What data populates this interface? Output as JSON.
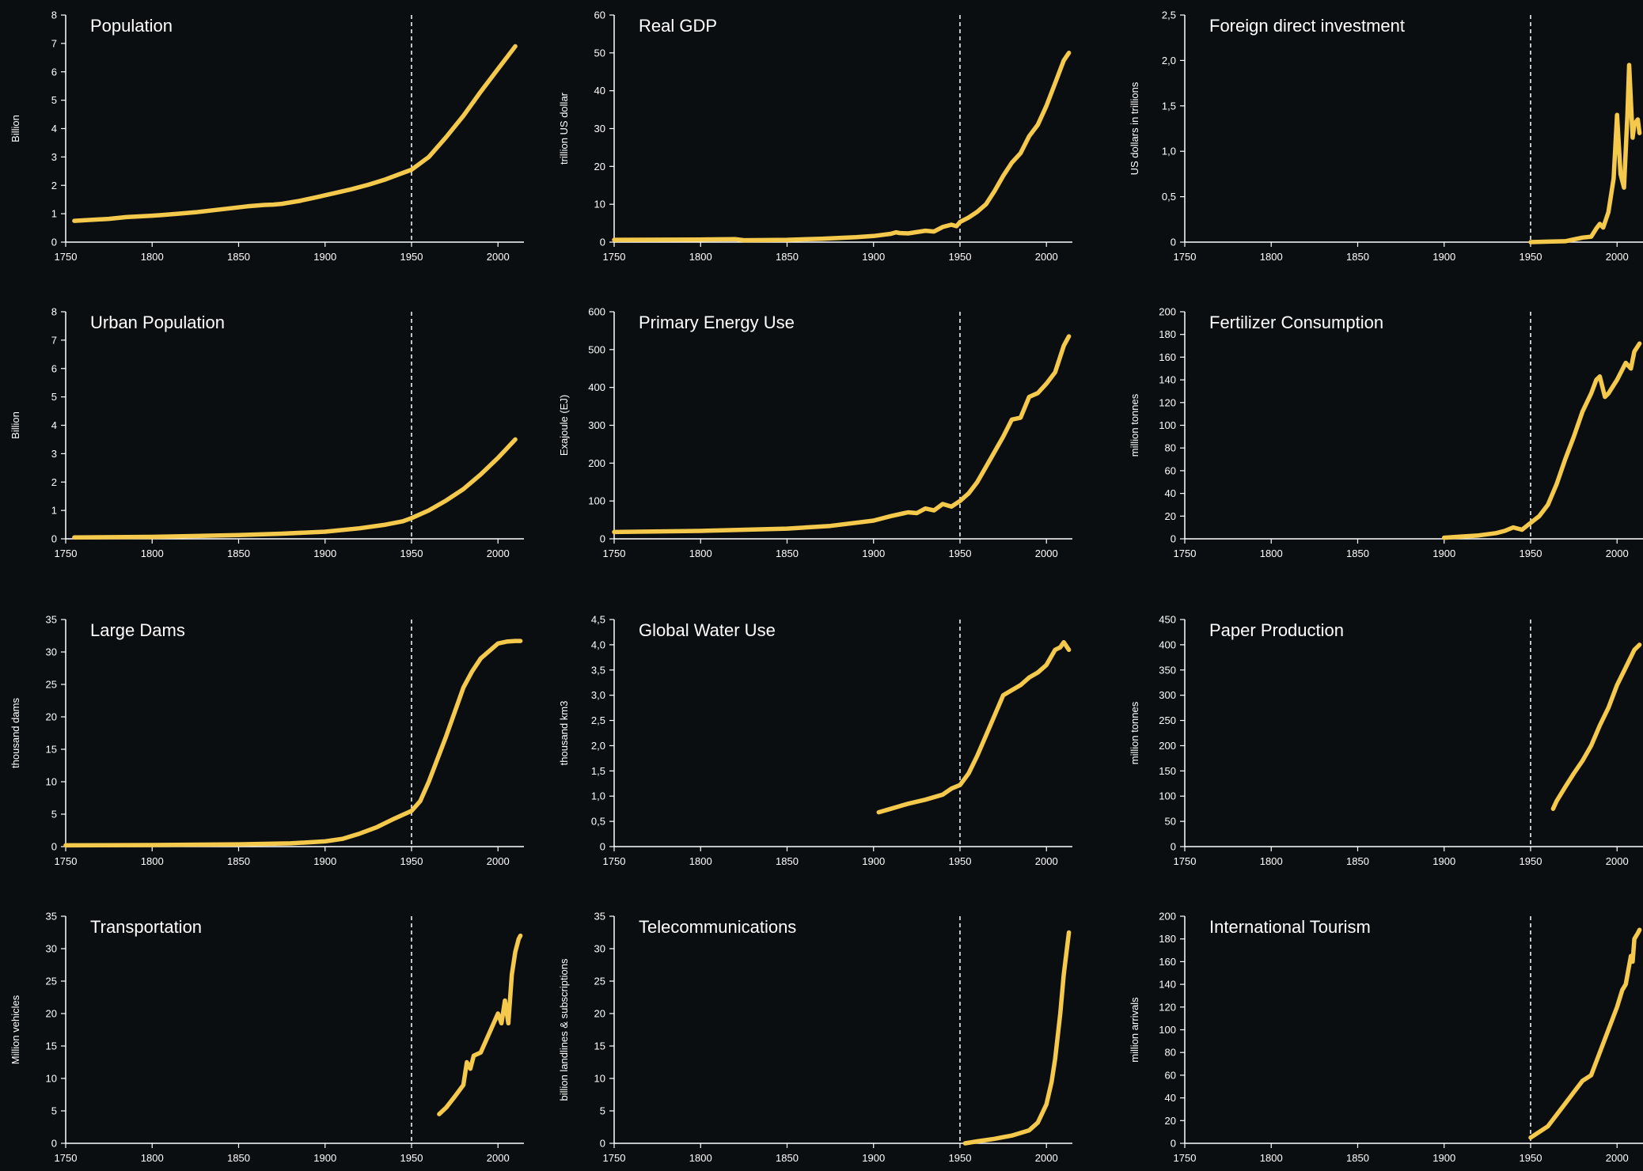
{
  "style": {
    "background": "#0b0e11",
    "line_color": "#f5c94c",
    "axis_color": "#ffffff",
    "reference_line": {
      "x": 1950,
      "style": "dashed",
      "color": "#ffffff"
    }
  },
  "chart_data": [
    {
      "type": "line",
      "title": "Population",
      "ylabel": "Billion",
      "xlabel": "",
      "xlim": [
        1750,
        2015
      ],
      "ylim": [
        0,
        8
      ],
      "xticks": [
        "1750",
        "1800",
        "1850",
        "1900",
        "1950",
        "2000"
      ],
      "yticks": [
        "0",
        "1",
        "2",
        "3",
        "4",
        "5",
        "6",
        "7",
        "8"
      ],
      "grid": false,
      "series": [
        {
          "x": [
            1755,
            1775,
            1785,
            1800,
            1805,
            1815,
            1825,
            1835,
            1845,
            1855,
            1865,
            1870,
            1875,
            1885,
            1895,
            1905,
            1915,
            1925,
            1935,
            1945,
            1950,
            1960,
            1970,
            1980,
            1990,
            2000,
            2010
          ],
          "y": [
            0.75,
            0.82,
            0.88,
            0.93,
            0.95,
            1.0,
            1.05,
            1.12,
            1.19,
            1.26,
            1.31,
            1.32,
            1.35,
            1.45,
            1.58,
            1.72,
            1.86,
            2.02,
            2.21,
            2.44,
            2.55,
            3.0,
            3.7,
            4.45,
            5.3,
            6.1,
            6.9
          ]
        }
      ]
    },
    {
      "type": "line",
      "title": "Real GDP",
      "ylabel": "trillion US dollar",
      "xlabel": "",
      "xlim": [
        1750,
        2015
      ],
      "ylim": [
        0,
        60
      ],
      "xticks": [
        "1750",
        "1800",
        "1850",
        "1900",
        "1950",
        "2000"
      ],
      "yticks": [
        "0",
        "10",
        "20",
        "30",
        "40",
        "50",
        "60"
      ],
      "grid": false,
      "series": [
        {
          "x": [
            1750,
            1800,
            1820,
            1825,
            1850,
            1870,
            1880,
            1890,
            1900,
            1910,
            1913,
            1915,
            1920,
            1930,
            1935,
            1940,
            1945,
            1948,
            1950,
            1955,
            1960,
            1965,
            1970,
            1975,
            1980,
            1985,
            1990,
            1995,
            2000,
            2005,
            2010,
            2013
          ],
          "y": [
            0.6,
            0.7,
            0.8,
            0.5,
            0.6,
            0.9,
            1.1,
            1.3,
            1.6,
            2.2,
            2.6,
            2.4,
            2.3,
            3.0,
            2.8,
            4.0,
            4.6,
            4.2,
            5.3,
            6.5,
            8.0,
            10.0,
            13.5,
            17.5,
            21.0,
            23.5,
            28.0,
            31.0,
            36.0,
            42.0,
            48.0,
            50.0
          ]
        }
      ]
    },
    {
      "type": "line",
      "title": "Foreign direct investment",
      "ylabel": "US dollars in trillions",
      "xlabel": "",
      "xlim": [
        1750,
        2015
      ],
      "ylim": [
        0,
        2.5
      ],
      "xticks": [
        "1750",
        "1800",
        "1850",
        "1900",
        "1950",
        "2000"
      ],
      "yticks": [
        "0",
        "0,5",
        "1,0",
        "1,5",
        "2,0",
        "2,5"
      ],
      "grid": false,
      "series": [
        {
          "x": [
            1950,
            1960,
            1970,
            1975,
            1980,
            1985,
            1988,
            1990,
            1992,
            1995,
            1998,
            2000,
            2002,
            2004,
            2006,
            2007,
            2009,
            2010,
            2012,
            2013
          ],
          "y": [
            0.0,
            0.005,
            0.01,
            0.03,
            0.05,
            0.06,
            0.15,
            0.2,
            0.16,
            0.33,
            0.7,
            1.4,
            0.75,
            0.6,
            1.4,
            1.95,
            1.15,
            1.3,
            1.35,
            1.2
          ]
        }
      ]
    },
    {
      "type": "line",
      "title": "Urban Population",
      "ylabel": "Billion",
      "xlabel": "",
      "xlim": [
        1750,
        2015
      ],
      "ylim": [
        0,
        8
      ],
      "xticks": [
        "1750",
        "1800",
        "1850",
        "1900",
        "1950",
        "2000"
      ],
      "yticks": [
        "0",
        "1",
        "2",
        "3",
        "4",
        "5",
        "6",
        "7",
        "8"
      ],
      "grid": false,
      "series": [
        {
          "x": [
            1755,
            1800,
            1850,
            1875,
            1900,
            1920,
            1935,
            1945,
            1950,
            1960,
            1970,
            1980,
            1990,
            2000,
            2010
          ],
          "y": [
            0.05,
            0.07,
            0.13,
            0.18,
            0.25,
            0.37,
            0.5,
            0.62,
            0.73,
            1.0,
            1.35,
            1.75,
            2.27,
            2.85,
            3.5
          ]
        }
      ]
    },
    {
      "type": "line",
      "title": "Primary Energy Use",
      "ylabel": "Exajoule (EJ)",
      "xlabel": "",
      "xlim": [
        1750,
        2015
      ],
      "ylim": [
        0,
        600
      ],
      "xticks": [
        "1750",
        "1800",
        "1850",
        "1900",
        "1950",
        "2000"
      ],
      "yticks": [
        "0",
        "100",
        "200",
        "300",
        "400",
        "500",
        "600"
      ],
      "grid": false,
      "series": [
        {
          "x": [
            1750,
            1800,
            1850,
            1875,
            1900,
            1910,
            1920,
            1925,
            1930,
            1935,
            1940,
            1945,
            1950,
            1955,
            1960,
            1965,
            1970,
            1975,
            1980,
            1985,
            1990,
            1995,
            2000,
            2005,
            2010,
            2013
          ],
          "y": [
            18,
            21,
            27,
            34,
            48,
            60,
            70,
            68,
            80,
            75,
            92,
            85,
            100,
            120,
            150,
            190,
            230,
            270,
            315,
            320,
            375,
            385,
            410,
            440,
            510,
            535
          ]
        }
      ]
    },
    {
      "type": "line",
      "title": "Fertilizer Consumption",
      "ylabel": "million tonnes",
      "xlabel": "",
      "xlim": [
        1750,
        2015
      ],
      "ylim": [
        0,
        200
      ],
      "xticks": [
        "1750",
        "1800",
        "1850",
        "1900",
        "1950",
        "2000"
      ],
      "yticks": [
        "0",
        "20",
        "40",
        "60",
        "80",
        "100",
        "120",
        "140",
        "160",
        "180",
        "200"
      ],
      "grid": false,
      "series": [
        {
          "x": [
            1900,
            1910,
            1920,
            1930,
            1935,
            1940,
            1945,
            1950,
            1955,
            1960,
            1965,
            1970,
            1975,
            1980,
            1985,
            1988,
            1990,
            1993,
            1995,
            2000,
            2005,
            2008,
            2010,
            2013
          ],
          "y": [
            1,
            2,
            3,
            5,
            7,
            10,
            8,
            14,
            20,
            30,
            48,
            70,
            90,
            112,
            128,
            140,
            143,
            125,
            128,
            140,
            155,
            150,
            165,
            172
          ]
        }
      ]
    },
    {
      "type": "line",
      "title": "Large Dams",
      "ylabel": "thousand dams",
      "xlabel": "",
      "xlim": [
        1750,
        2015
      ],
      "ylim": [
        0,
        35
      ],
      "xticks": [
        "1750",
        "1800",
        "1850",
        "1900",
        "1950",
        "2000"
      ],
      "yticks": [
        "0",
        "5",
        "10",
        "15",
        "20",
        "25",
        "30",
        "35"
      ],
      "grid": false,
      "series": [
        {
          "x": [
            1750,
            1800,
            1850,
            1880,
            1900,
            1910,
            1920,
            1930,
            1940,
            1950,
            1955,
            1960,
            1970,
            1980,
            1985,
            1990,
            2000,
            2005,
            2010,
            2013
          ],
          "y": [
            0.2,
            0.25,
            0.35,
            0.5,
            0.8,
            1.2,
            2.0,
            3.0,
            4.3,
            5.5,
            7.0,
            10.0,
            17.0,
            24.5,
            27.0,
            29.0,
            31.3,
            31.6,
            31.7,
            31.7
          ]
        }
      ]
    },
    {
      "type": "line",
      "title": "Global Water Use",
      "ylabel": "thousand km3",
      "xlabel": "",
      "xlim": [
        1750,
        2015
      ],
      "ylim": [
        0,
        4.5
      ],
      "xticks": [
        "1750",
        "1800",
        "1850",
        "1900",
        "1950",
        "2000"
      ],
      "yticks": [
        "0",
        "0,5",
        "1,0",
        "1,5",
        "2,0",
        "2,5",
        "3,0",
        "3,5",
        "4,0",
        "4,5"
      ],
      "grid": false,
      "series": [
        {
          "x": [
            1903,
            1910,
            1920,
            1930,
            1940,
            1945,
            1950,
            1955,
            1960,
            1965,
            1970,
            1975,
            1980,
            1985,
            1990,
            1995,
            2000,
            2005,
            2008,
            2010,
            2013
          ],
          "y": [
            0.68,
            0.75,
            0.85,
            0.93,
            1.03,
            1.15,
            1.22,
            1.45,
            1.8,
            2.2,
            2.6,
            3.0,
            3.1,
            3.2,
            3.35,
            3.45,
            3.6,
            3.9,
            3.95,
            4.05,
            3.9
          ]
        }
      ]
    },
    {
      "type": "line",
      "title": "Paper Production",
      "ylabel": "million tonnes",
      "xlabel": "",
      "xlim": [
        1750,
        2015
      ],
      "ylim": [
        0,
        450
      ],
      "xticks": [
        "1750",
        "1800",
        "1850",
        "1900",
        "1950",
        "2000"
      ],
      "yticks": [
        "0",
        "50",
        "100",
        "150",
        "200",
        "250",
        "300",
        "350",
        "400",
        "450"
      ],
      "grid": false,
      "series": [
        {
          "x": [
            1963,
            1965,
            1970,
            1975,
            1980,
            1985,
            1990,
            1995,
            2000,
            2005,
            2010,
            2013
          ],
          "y": [
            75,
            90,
            118,
            145,
            170,
            200,
            240,
            275,
            320,
            355,
            390,
            400
          ]
        }
      ]
    },
    {
      "type": "line",
      "title": "Transportation",
      "ylabel": "Million vehicles",
      "xlabel": "",
      "xlim": [
        1750,
        2015
      ],
      "ylim": [
        0,
        35
      ],
      "xticks": [
        "1750",
        "1800",
        "1850",
        "1900",
        "1950",
        "2000"
      ],
      "yticks": [
        "0",
        "5",
        "10",
        "15",
        "20",
        "25",
        "30",
        "35"
      ],
      "grid": false,
      "series": [
        {
          "x": [
            1966,
            1970,
            1975,
            1980,
            1982,
            1984,
            1986,
            1990,
            1995,
            2000,
            2002,
            2004,
            2006,
            2008,
            2010,
            2012,
            2013
          ],
          "y": [
            4.5,
            5.5,
            7.2,
            9.0,
            12.5,
            11.5,
            13.5,
            14.0,
            17.0,
            20.0,
            18.5,
            22.0,
            18.5,
            26.0,
            29.5,
            31.5,
            32.0
          ]
        }
      ]
    },
    {
      "type": "line",
      "title": "Telecommunications",
      "ylabel": "billion landlines & subscriptions",
      "xlabel": "",
      "xlim": [
        1750,
        2015
      ],
      "ylim": [
        0,
        35
      ],
      "xticks": [
        "1750",
        "1800",
        "1850",
        "1900",
        "1950",
        "2000"
      ],
      "yticks": [
        "0",
        "5",
        "10",
        "15",
        "20",
        "25",
        "30",
        "35"
      ],
      "grid": false,
      "series": [
        {
          "x": [
            1953,
            1960,
            1970,
            1980,
            1990,
            1995,
            2000,
            2003,
            2005,
            2008,
            2010,
            2013
          ],
          "y": [
            0.0,
            0.3,
            0.7,
            1.2,
            2.0,
            3.2,
            6.0,
            9.5,
            13.0,
            20.0,
            26.0,
            32.5
          ]
        }
      ]
    },
    {
      "type": "line",
      "title": "International Tourism",
      "ylabel": "million arrivals",
      "xlabel": "",
      "xlim": [
        1750,
        2015
      ],
      "ylim": [
        0,
        200
      ],
      "xticks": [
        "1750",
        "1800",
        "1850",
        "1900",
        "1950",
        "2000"
      ],
      "yticks": [
        "0",
        "20",
        "40",
        "60",
        "80",
        "100",
        "120",
        "140",
        "160",
        "180",
        "200"
      ],
      "grid": false,
      "series": [
        {
          "x": [
            1950,
            1955,
            1960,
            1965,
            1970,
            1975,
            1980,
            1985,
            1990,
            1995,
            2000,
            2003,
            2005,
            2008,
            2009,
            2010,
            2012,
            2013
          ],
          "y": [
            5,
            10,
            15,
            25,
            35,
            45,
            55,
            60,
            80,
            100,
            120,
            135,
            140,
            165,
            160,
            180,
            185,
            188
          ]
        }
      ]
    }
  ]
}
